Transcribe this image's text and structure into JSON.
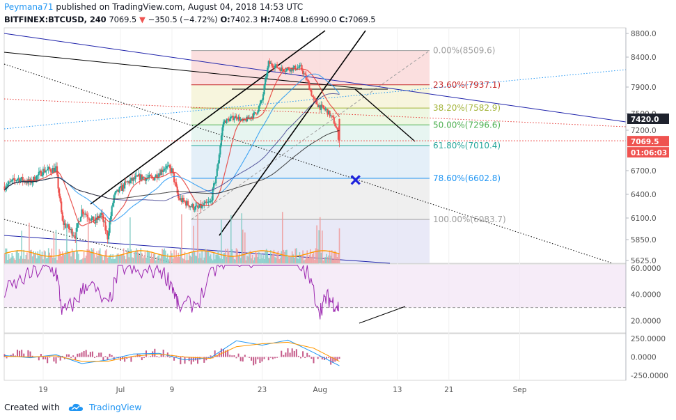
{
  "header": {
    "author": "Peymana71",
    "published_text": "published on TradingView.com, August 04, 2018 14:53 UTC",
    "symbol": "BITFINEX:BTCUSD, 240",
    "last": "7069.5",
    "change": "−350.5 (−4.72%)",
    "o_label": "O:",
    "o_value": "7402.3",
    "h_label": "H:",
    "h_value": "7408.8",
    "l_label": "L:",
    "l_value": "6990.0",
    "c_label": "C:",
    "c_value": "7069.5"
  },
  "footer": {
    "created_with": "Created with",
    "brand": "TradingView"
  },
  "colors": {
    "up": "#26a69a",
    "down": "#ef5350",
    "accent": "#2196f3",
    "rsi": "#9c27b0"
  },
  "chart_data": [
    {
      "type": "candlestick",
      "pane": "price",
      "symbol": "BITFINEX:BTCUSD",
      "interval": "240",
      "ylim": [
        5625,
        8800
      ],
      "y_ticks": [
        "8800.0",
        "8400.0",
        "7900.0",
        "7500.0",
        "7200.0",
        "6700.0",
        "6400.0",
        "6100.0",
        "5850.0",
        "5625.0"
      ],
      "x_ticks": [
        "19",
        "Jul",
        "9",
        "23",
        "Aug",
        "13",
        "21",
        "Sep"
      ],
      "x_tick_dates": [
        "2018-06-19",
        "2018-07-01",
        "2018-07-09",
        "2018-07-23",
        "2018-08-01",
        "2018-08-13",
        "2018-08-21",
        "2018-09-01"
      ],
      "last_price_label": "7069.5",
      "countdown_label": "01:06:03",
      "marker_label": "7420.0",
      "close_path": [
        [
          "2018-06-13",
          6500
        ],
        [
          "2018-06-15",
          6600
        ],
        [
          "2018-06-17",
          6550
        ],
        [
          "2018-06-19",
          6700
        ],
        [
          "2018-06-21",
          6720
        ],
        [
          "2018-06-22",
          6050
        ],
        [
          "2018-06-24",
          5900
        ],
        [
          "2018-06-25",
          6200
        ],
        [
          "2018-06-27",
          6050
        ],
        [
          "2018-06-28",
          6150
        ],
        [
          "2018-06-29",
          5880
        ],
        [
          "2018-06-30",
          6380
        ],
        [
          "2018-07-02",
          6550
        ],
        [
          "2018-07-04",
          6620
        ],
        [
          "2018-07-06",
          6600
        ],
        [
          "2018-07-08",
          6750
        ],
        [
          "2018-07-09",
          6700
        ],
        [
          "2018-07-10",
          6350
        ],
        [
          "2018-07-12",
          6250
        ],
        [
          "2018-07-13",
          6220
        ],
        [
          "2018-07-15",
          6300
        ],
        [
          "2018-07-16",
          6700
        ],
        [
          "2018-07-17",
          7350
        ],
        [
          "2018-07-19",
          7450
        ],
        [
          "2018-07-20",
          7350
        ],
        [
          "2018-07-22",
          7500
        ],
        [
          "2018-07-23",
          7700
        ],
        [
          "2018-07-24",
          8300
        ],
        [
          "2018-07-26",
          8200
        ],
        [
          "2018-07-27",
          8200
        ],
        [
          "2018-07-29",
          8230
        ],
        [
          "2018-07-30",
          8000
        ],
        [
          "2018-07-31",
          7700
        ],
        [
          "2018-08-01",
          7600
        ],
        [
          "2018-08-02",
          7550
        ],
        [
          "2018-08-03",
          7400
        ],
        [
          "2018-08-04",
          7069.5
        ]
      ],
      "fibonacci": {
        "levels": [
          {
            "ratio": "0.00%",
            "price": 8509.6,
            "color": "#9e9e9e"
          },
          {
            "ratio": "23.60%",
            "price": 7937.1,
            "color": "#c62828"
          },
          {
            "ratio": "38.20%",
            "price": 7582.9,
            "color": "#a4b43b"
          },
          {
            "ratio": "50.00%",
            "price": 7296.6,
            "color": "#4caf50"
          },
          {
            "ratio": "61.80%",
            "price": 7010.4,
            "color": "#26a69a"
          },
          {
            "ratio": "78.60%",
            "price": 6602.8,
            "color": "#2196f3"
          },
          {
            "ratio": "100.00%",
            "price": 6083.7,
            "color": "#9e9e9e"
          }
        ],
        "from_date": "2018-07-12",
        "to_date": "2018-08-18"
      },
      "annotations": {
        "target_marker": {
          "date": "2018-08-05",
          "price": 6600,
          "shape": "x"
        }
      },
      "volume_ylim": [
        0,
        1
      ]
    },
    {
      "type": "line",
      "pane": "rsi",
      "ylim": [
        15,
        62
      ],
      "y_ticks": [
        "60.0000",
        "40.0000",
        "20.0000"
      ],
      "guide_level": 30,
      "x": [
        "2018-06-13",
        "2018-06-16",
        "2018-06-19",
        "2018-06-21",
        "2018-06-22",
        "2018-06-24",
        "2018-06-26",
        "2018-06-29",
        "2018-07-01",
        "2018-07-04",
        "2018-07-07",
        "2018-07-09",
        "2018-07-10",
        "2018-07-13",
        "2018-07-16",
        "2018-07-18",
        "2018-07-21",
        "2018-07-24",
        "2018-07-27",
        "2018-07-30",
        "2018-08-01",
        "2018-08-02",
        "2018-08-03",
        "2018-08-04"
      ],
      "values": [
        42,
        52,
        60,
        58,
        26,
        34,
        50,
        30,
        62,
        55,
        60,
        48,
        30,
        34,
        62,
        70,
        64,
        72,
        68,
        56,
        28,
        38,
        34,
        30
      ]
    },
    {
      "type": "line",
      "pane": "macd",
      "ylim": [
        -280,
        280
      ],
      "y_ticks": [
        "250.0000",
        "0.0000",
        "-250.0000"
      ],
      "x": [
        "2018-06-13",
        "2018-06-17",
        "2018-06-21",
        "2018-06-25",
        "2018-06-29",
        "2018-07-03",
        "2018-07-07",
        "2018-07-11",
        "2018-07-15",
        "2018-07-19",
        "2018-07-23",
        "2018-07-27",
        "2018-07-31",
        "2018-08-04"
      ],
      "series": [
        {
          "values": [
            20,
            -10,
            30,
            -90,
            -40,
            40,
            50,
            -40,
            -10,
            220,
            160,
            230,
            60,
            -120
          ]
        },
        {
          "values": [
            10,
            0,
            15,
            -60,
            -60,
            10,
            40,
            0,
            -20,
            140,
            180,
            200,
            120,
            -60
          ]
        }
      ]
    }
  ]
}
